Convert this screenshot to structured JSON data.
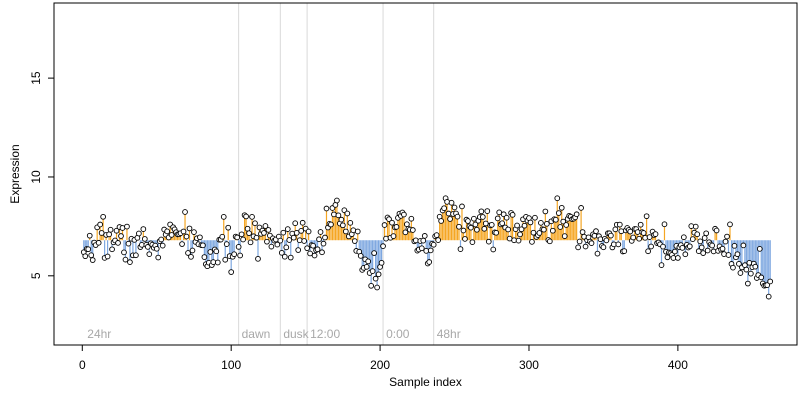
{
  "chart_data": {
    "type": "scatter",
    "xlabel": "Sample index",
    "ylabel": "Expression",
    "xlim": [
      -19,
      480
    ],
    "ylim": [
      1.5,
      18.8
    ],
    "x_ticks": [
      0,
      100,
      200,
      300,
      400
    ],
    "y_ticks": [
      5,
      10,
      15
    ],
    "grid": false,
    "colors": {
      "above": "#f5a623",
      "below": "#7da7e0",
      "point_fill": "#ffffff",
      "point_stroke": "#000000",
      "vline": "#d9d9d9",
      "vlabel": "#a8a8a8"
    },
    "n_points": 462,
    "baseline_segments": [
      {
        "x_start": 1,
        "x_end": 462,
        "baseline": 6.8
      }
    ],
    "vertical_lines": [
      {
        "x": 105,
        "label": "dawn"
      },
      {
        "x": 133,
        "label": "dusk"
      },
      {
        "x": 151,
        "label": "12:00"
      },
      {
        "x": 202,
        "label": "0:00"
      },
      {
        "x": 236,
        "label": "48hr"
      }
    ],
    "corner_label": {
      "x": 2,
      "label": "24hr"
    },
    "profile": [
      {
        "x": 1,
        "y": 5.5
      },
      {
        "x": 4,
        "y": 5.7
      },
      {
        "x": 8,
        "y": 6.6
      },
      {
        "x": 12,
        "y": 7.6
      },
      {
        "x": 16,
        "y": 6.6
      },
      {
        "x": 20,
        "y": 7.0
      },
      {
        "x": 30,
        "y": 6.6
      },
      {
        "x": 40,
        "y": 6.6
      },
      {
        "x": 45,
        "y": 6.4
      },
      {
        "x": 55,
        "y": 6.9
      },
      {
        "x": 65,
        "y": 7.1
      },
      {
        "x": 70,
        "y": 6.9
      },
      {
        "x": 78,
        "y": 6.6
      },
      {
        "x": 85,
        "y": 5.8
      },
      {
        "x": 90,
        "y": 6.2
      },
      {
        "x": 97,
        "y": 6.6
      },
      {
        "x": 103,
        "y": 6.2
      },
      {
        "x": 110,
        "y": 7.2
      },
      {
        "x": 120,
        "y": 7.2
      },
      {
        "x": 130,
        "y": 7.0
      },
      {
        "x": 135,
        "y": 6.6
      },
      {
        "x": 140,
        "y": 6.9
      },
      {
        "x": 145,
        "y": 7.5
      },
      {
        "x": 152,
        "y": 7.1
      },
      {
        "x": 156,
        "y": 6.0
      },
      {
        "x": 162,
        "y": 7.3
      },
      {
        "x": 168,
        "y": 8.3
      },
      {
        "x": 172,
        "y": 7.8
      },
      {
        "x": 178,
        "y": 7.5
      },
      {
        "x": 182,
        "y": 6.7
      },
      {
        "x": 188,
        "y": 6.0
      },
      {
        "x": 195,
        "y": 5.4
      },
      {
        "x": 199,
        "y": 5.0
      },
      {
        "x": 202,
        "y": 7.0
      },
      {
        "x": 206,
        "y": 8.0
      },
      {
        "x": 212,
        "y": 7.6
      },
      {
        "x": 220,
        "y": 7.0
      },
      {
        "x": 228,
        "y": 6.4
      },
      {
        "x": 234,
        "y": 5.8
      },
      {
        "x": 238,
        "y": 7.2
      },
      {
        "x": 242,
        "y": 8.2
      },
      {
        "x": 248,
        "y": 8.4
      },
      {
        "x": 255,
        "y": 7.6
      },
      {
        "x": 265,
        "y": 7.4
      },
      {
        "x": 275,
        "y": 7.6
      },
      {
        "x": 285,
        "y": 7.6
      },
      {
        "x": 295,
        "y": 7.3
      },
      {
        "x": 305,
        "y": 7.3
      },
      {
        "x": 315,
        "y": 7.6
      },
      {
        "x": 325,
        "y": 7.8
      },
      {
        "x": 335,
        "y": 7.3
      },
      {
        "x": 345,
        "y": 6.6
      },
      {
        "x": 355,
        "y": 7.0
      },
      {
        "x": 365,
        "y": 7.1
      },
      {
        "x": 372,
        "y": 7.5
      },
      {
        "x": 380,
        "y": 7.3
      },
      {
        "x": 388,
        "y": 6.3
      },
      {
        "x": 395,
        "y": 5.9
      },
      {
        "x": 402,
        "y": 6.3
      },
      {
        "x": 410,
        "y": 6.8
      },
      {
        "x": 418,
        "y": 6.5
      },
      {
        "x": 425,
        "y": 6.5
      },
      {
        "x": 432,
        "y": 6.6
      },
      {
        "x": 437,
        "y": 5.8
      },
      {
        "x": 443,
        "y": 5.6
      },
      {
        "x": 450,
        "y": 5.2
      },
      {
        "x": 456,
        "y": 5.6
      },
      {
        "x": 462,
        "y": 4.5
      }
    ],
    "jitter_sd": 0.48,
    "random_seed": 7
  }
}
